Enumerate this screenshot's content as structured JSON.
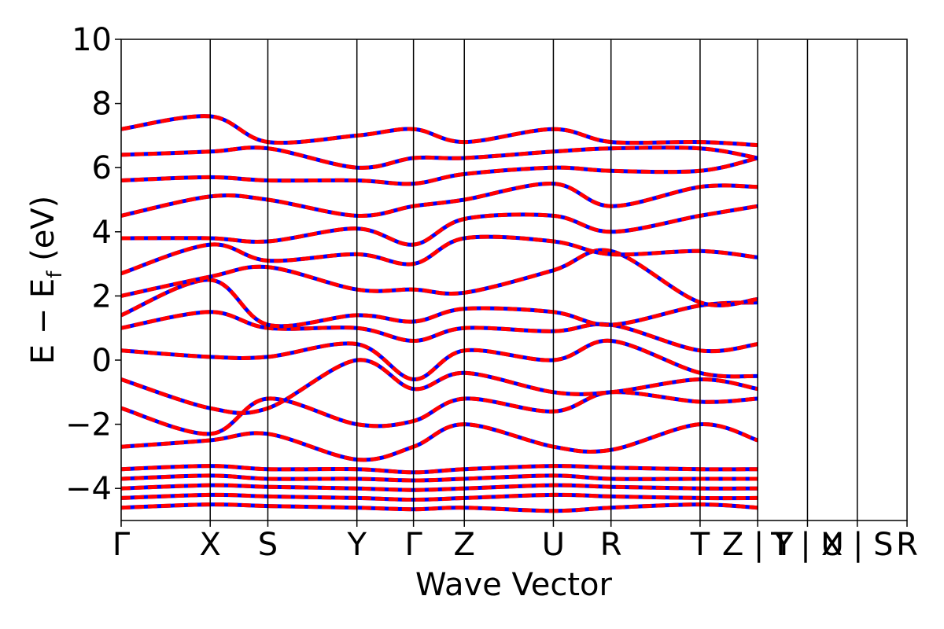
{
  "chart_data": {
    "type": "line",
    "title": "",
    "xlabel": "Wave Vector",
    "ylabel": "E − E",
    "ylabel_subscript": "f",
    "ylabel_unit": " (eV)",
    "ylim": [
      -5,
      10
    ],
    "yticks": [
      -4,
      -2,
      0,
      2,
      4,
      6,
      8,
      10
    ],
    "ytick_labels": [
      "−4",
      "−2",
      "0",
      "2",
      "4",
      "6",
      "8",
      "10"
    ],
    "xlim": [
      0,
      15.0
    ],
    "kpoint_positions": [
      0,
      1.7,
      2.8,
      4.5,
      5.58,
      6.55,
      8.25,
      9.35,
      11.05,
      12.15,
      13.1,
      14.05,
      15.0
    ],
    "kpoint_labels": [
      "Γ",
      "X",
      "S",
      "Y",
      "Γ",
      "Z",
      "U",
      "R",
      "T",
      "Z | Y",
      "T | U",
      "X | S",
      "R"
    ],
    "grid": false,
    "colors": {
      "series_a": "#ff0000",
      "series_b": "#0000ff",
      "vlines": "#000000"
    },
    "series": [
      {
        "line_style": "dashed-blue-over-red",
        "bands": [
          {
            "x": [
              0,
              1.7,
              2.8,
              4.5,
              5.58,
              6.55,
              8.25,
              9.35,
              11.05,
              12.15
            ],
            "y": [
              -4.6,
              -4.5,
              -4.55,
              -4.6,
              -4.65,
              -4.6,
              -4.7,
              -4.6,
              -4.5,
              -4.6
            ]
          },
          {
            "x": [
              0,
              1.7,
              2.8,
              4.5,
              5.58,
              6.55,
              8.25,
              9.35,
              11.05,
              12.15
            ],
            "y": [
              -4.3,
              -4.2,
              -4.25,
              -4.3,
              -4.35,
              -4.3,
              -4.2,
              -4.25,
              -4.3,
              -4.3
            ]
          },
          {
            "x": [
              0,
              1.7,
              2.8,
              4.5,
              5.58,
              6.55,
              8.25,
              9.35,
              11.05,
              12.15
            ],
            "y": [
              -4.0,
              -3.9,
              -3.95,
              -4.0,
              -4.05,
              -4.0,
              -3.9,
              -3.95,
              -4.0,
              -4.0
            ]
          },
          {
            "x": [
              0,
              1.7,
              2.8,
              4.5,
              5.58,
              6.55,
              8.25,
              9.35,
              11.05,
              12.15
            ],
            "y": [
              -3.7,
              -3.6,
              -3.7,
              -3.7,
              -3.75,
              -3.7,
              -3.6,
              -3.7,
              -3.7,
              -3.7
            ]
          },
          {
            "x": [
              0,
              1.7,
              2.8,
              4.5,
              5.58,
              6.55,
              8.25,
              9.35,
              11.05,
              12.15
            ],
            "y": [
              -3.4,
              -3.3,
              -3.4,
              -3.4,
              -3.5,
              -3.4,
              -3.3,
              -3.35,
              -3.4,
              -3.4
            ]
          },
          {
            "x": [
              0,
              1.7,
              2.8,
              4.5,
              5.58,
              6.55,
              8.25,
              9.35,
              11.05,
              12.15
            ],
            "y": [
              -2.7,
              -2.5,
              -2.3,
              -3.1,
              -2.7,
              -2.0,
              -2.7,
              -2.8,
              -2.0,
              -2.5
            ]
          },
          {
            "x": [
              0,
              1.7,
              2.8,
              4.5,
              5.58,
              6.55,
              8.25,
              9.35,
              11.05,
              12.15
            ],
            "y": [
              -1.5,
              -2.3,
              -1.2,
              -2.0,
              -1.9,
              -1.2,
              -1.6,
              -1.0,
              -1.3,
              -1.2
            ]
          },
          {
            "x": [
              0,
              1.7,
              2.8,
              4.5,
              5.58,
              6.55,
              8.25,
              9.35,
              11.05,
              12.15
            ],
            "y": [
              -0.6,
              -1.5,
              -1.5,
              0.0,
              -0.9,
              -0.4,
              -1.0,
              -1.0,
              -0.6,
              -0.9
            ]
          },
          {
            "x": [
              0,
              1.7,
              2.8,
              4.5,
              5.58,
              6.55,
              8.25,
              9.35,
              11.05,
              12.15
            ],
            "y": [
              0.3,
              0.1,
              0.1,
              0.5,
              -0.6,
              0.3,
              0.0,
              0.6,
              -0.4,
              -0.5
            ]
          },
          {
            "x": [
              0,
              1.7,
              2.8,
              4.5,
              5.58,
              6.55,
              8.25,
              9.35,
              11.05,
              12.15
            ],
            "y": [
              1.0,
              1.5,
              1.0,
              1.0,
              0.6,
              1.0,
              0.9,
              1.1,
              0.3,
              0.5
            ]
          },
          {
            "x": [
              0,
              1.7,
              2.8,
              4.5,
              5.58,
              6.55,
              8.25,
              9.35,
              11.05,
              12.15
            ],
            "y": [
              1.4,
              2.5,
              1.1,
              1.4,
              1.2,
              1.6,
              1.5,
              1.1,
              1.7,
              1.8
            ]
          },
          {
            "x": [
              0,
              1.7,
              2.8,
              4.5,
              5.58,
              6.55,
              8.25,
              9.35,
              11.05,
              12.15
            ],
            "y": [
              2.0,
              2.6,
              2.9,
              2.2,
              2.2,
              2.1,
              2.8,
              3.4,
              1.8,
              1.9
            ]
          },
          {
            "x": [
              0,
              1.7,
              2.8,
              4.5,
              5.58,
              6.55,
              8.25,
              9.35,
              11.05,
              12.15
            ],
            "y": [
              2.7,
              3.6,
              3.1,
              3.3,
              3.0,
              3.8,
              3.7,
              3.3,
              3.4,
              3.2
            ]
          },
          {
            "x": [
              0,
              1.7,
              2.8,
              4.5,
              5.58,
              6.55,
              8.25,
              9.35,
              11.05,
              12.15
            ],
            "y": [
              3.8,
              3.8,
              3.7,
              4.1,
              3.6,
              4.4,
              4.5,
              4.0,
              4.5,
              4.8
            ]
          },
          {
            "x": [
              0,
              1.7,
              2.8,
              4.5,
              5.58,
              6.55,
              8.25,
              9.35,
              11.05,
              12.15
            ],
            "y": [
              4.5,
              5.1,
              5.0,
              4.5,
              4.8,
              5.0,
              5.5,
              4.8,
              5.4,
              5.4
            ]
          },
          {
            "x": [
              0,
              1.7,
              2.8,
              4.5,
              5.58,
              6.55,
              8.25,
              9.35,
              11.05,
              12.15
            ],
            "y": [
              5.6,
              5.7,
              5.6,
              5.6,
              5.5,
              5.8,
              6.0,
              5.9,
              5.9,
              6.3
            ]
          },
          {
            "x": [
              0,
              1.7,
              2.8,
              4.5,
              5.58,
              6.55,
              8.25,
              9.35,
              11.05,
              12.15
            ],
            "y": [
              6.4,
              6.5,
              6.6,
              6.0,
              6.3,
              6.3,
              6.5,
              6.6,
              6.6,
              6.3
            ]
          },
          {
            "x": [
              0,
              1.7,
              2.8,
              4.5,
              5.58,
              6.55,
              8.25,
              9.35,
              11.05,
              12.15
            ],
            "y": [
              7.2,
              7.6,
              6.8,
              7.0,
              7.2,
              6.8,
              7.2,
              6.8,
              6.8,
              6.7
            ]
          }
        ]
      }
    ]
  }
}
